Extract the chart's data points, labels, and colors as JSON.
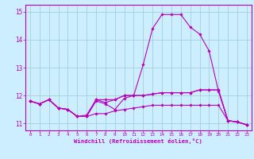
{
  "line1": [
    11.8,
    11.7,
    11.85,
    11.55,
    11.5,
    11.25,
    11.25,
    11.8,
    11.7,
    11.5,
    11.9,
    12.0,
    13.1,
    14.4,
    14.9,
    14.9,
    14.9,
    14.45,
    14.2,
    13.6,
    12.15,
    11.1,
    11.05,
    10.95
  ],
  "line2": [
    11.8,
    11.7,
    11.85,
    11.55,
    11.5,
    11.25,
    11.3,
    11.85,
    11.75,
    11.85,
    12.0,
    12.0,
    12.0,
    12.05,
    12.1,
    12.1,
    12.1,
    12.1,
    12.2,
    12.2,
    12.2,
    11.1,
    11.05,
    10.95
  ],
  "line3": [
    11.8,
    11.7,
    11.85,
    11.55,
    11.5,
    11.25,
    11.25,
    11.35,
    11.35,
    11.45,
    11.5,
    11.55,
    11.6,
    11.65,
    11.65,
    11.65,
    11.65,
    11.65,
    11.65,
    11.65,
    11.65,
    11.1,
    11.05,
    10.95
  ],
  "line4": [
    11.8,
    11.7,
    11.85,
    11.55,
    11.5,
    11.25,
    11.25,
    11.85,
    11.85,
    11.85,
    12.0,
    12.0,
    12.0,
    12.05,
    12.1,
    12.1,
    12.1,
    12.1,
    12.2,
    12.2,
    12.2,
    11.1,
    11.05,
    10.95
  ],
  "x": [
    0,
    1,
    2,
    3,
    4,
    5,
    6,
    7,
    8,
    9,
    10,
    11,
    12,
    13,
    14,
    15,
    16,
    17,
    18,
    19,
    20,
    21,
    22,
    23
  ],
  "xlim": [
    -0.5,
    23.5
  ],
  "ylim": [
    10.75,
    15.25
  ],
  "yticks": [
    11,
    12,
    13,
    14,
    15
  ],
  "xticks": [
    0,
    1,
    2,
    3,
    4,
    5,
    6,
    7,
    8,
    9,
    10,
    11,
    12,
    13,
    14,
    15,
    16,
    17,
    18,
    19,
    20,
    21,
    22,
    23
  ],
  "line_color": "#bb00bb",
  "bg_color": "#cceeff",
  "grid_color": "#99cccc",
  "xlabel": "Windchill (Refroidissement éolien,°C)",
  "xlabel_color": "#bb00bb",
  "tick_color": "#bb00bb",
  "marker": "D",
  "marker_size": 1.8,
  "linewidth": 0.8,
  "tick_fontsize": 4.2,
  "ylabel_fontsize": 5.5,
  "xlabel_fontsize": 5.2
}
